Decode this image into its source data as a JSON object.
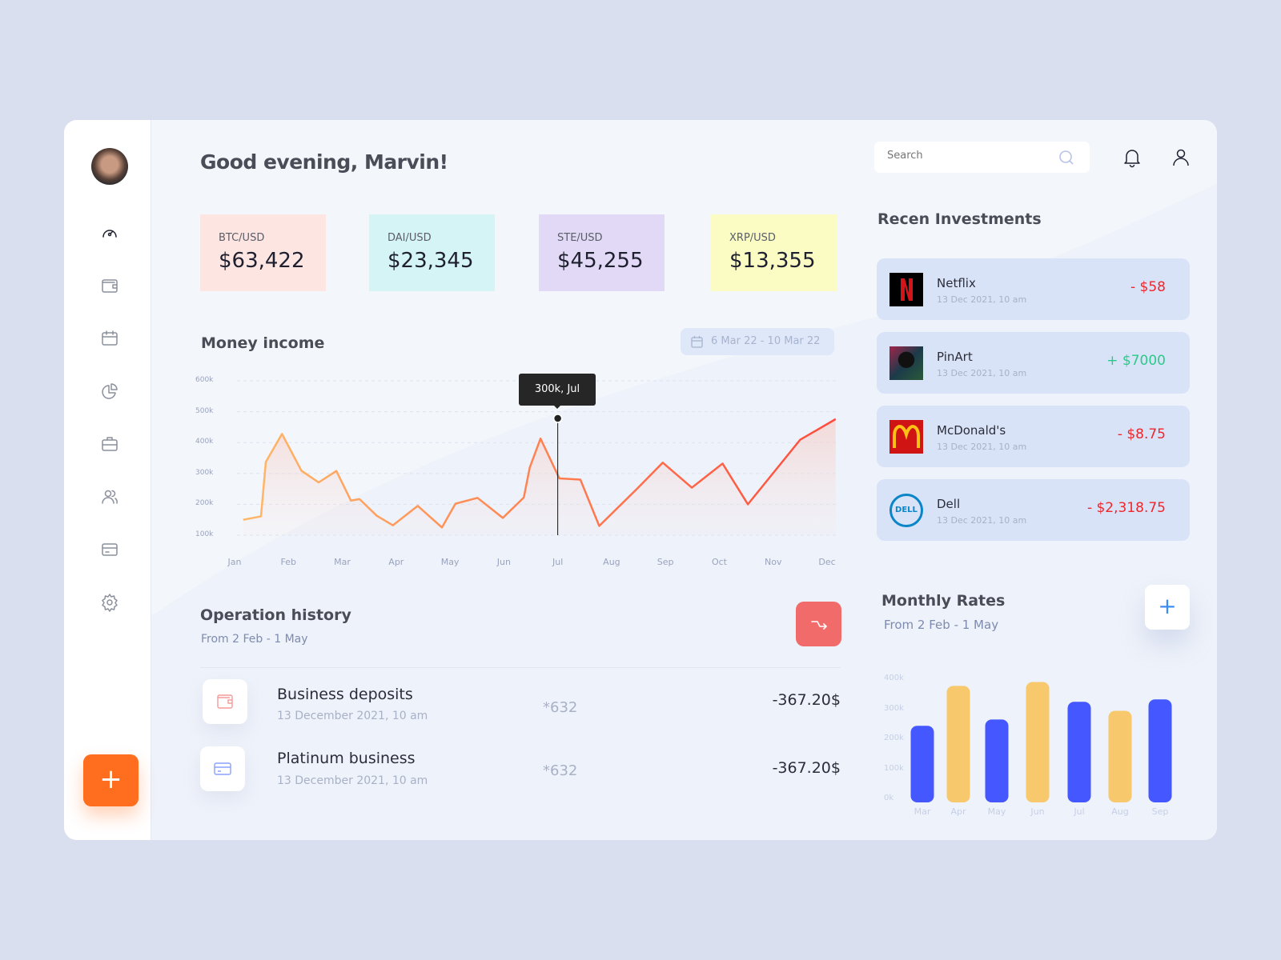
{
  "user": {
    "greeting": "Good evening, Marvin!"
  },
  "sidebar": {
    "items": [
      {
        "icon": "dashboard-gauge-icon"
      },
      {
        "icon": "wallet-icon"
      },
      {
        "icon": "calendar-icon"
      },
      {
        "icon": "pie-chart-icon"
      },
      {
        "icon": "briefcase-icon"
      },
      {
        "icon": "users-icon"
      },
      {
        "icon": "credit-card-icon"
      },
      {
        "icon": "settings-gear-icon"
      }
    ],
    "fab_label": "+"
  },
  "search": {
    "placeholder": "Search"
  },
  "tickers": [
    {
      "label": "BTC/USD",
      "value": "$63,422",
      "color": "#fde6e1"
    },
    {
      "label": "DAI/USD",
      "value": "$23,345",
      "color": "#d4f4f6"
    },
    {
      "label": "STE/USD",
      "value": "$45,255",
      "color": "#e2d9f6"
    },
    {
      "label": "XRP/USD",
      "value": "$13,355",
      "color": "#fafcc4"
    }
  ],
  "income": {
    "title": "Money income",
    "date_range": "6 Mar 22 - 10 Mar 22",
    "tooltip": "300k, Jul"
  },
  "chart_data": [
    {
      "type": "line",
      "title": "Money income",
      "x_tick_labels": [
        "Jan",
        "Feb",
        "Mar",
        "Apr",
        "May",
        "Jun",
        "Jul",
        "Aug",
        "Sep",
        "Oct",
        "Nov",
        "Dec"
      ],
      "y_tick_labels": [
        "600k",
        "500k",
        "400k",
        "300k",
        "200k",
        "100k"
      ],
      "ylim": [
        100,
        600
      ],
      "grid": true,
      "x_month_index": [
        0.16,
        0.49,
        0.58,
        0.88,
        1.24,
        1.56,
        1.89,
        2.16,
        2.32,
        2.64,
        2.94,
        3.4,
        3.85,
        4.1,
        4.51,
        4.98,
        5.37,
        5.48,
        5.68,
        6.03,
        6.42,
        6.77,
        7.47,
        7.95,
        8.49,
        9.06,
        9.53,
        10.5,
        11.16
      ],
      "y_k": [
        150,
        161,
        337,
        428,
        309,
        271,
        308,
        212,
        217,
        163,
        132,
        195,
        125,
        202,
        221,
        156,
        222,
        319,
        413,
        284,
        280,
        130,
        250,
        335,
        254,
        332,
        200,
        409,
        476
      ],
      "highlight": {
        "x": "Jul",
        "label": "300k, Jul"
      },
      "colors": {
        "start": "#ffb867",
        "end": "#ff4a3d"
      }
    },
    {
      "type": "bar",
      "title": "Monthly Rates",
      "categories": [
        "Mar",
        "Apr",
        "May",
        "Jun",
        "Jul",
        "Aug",
        "Sep"
      ],
      "values_k": [
        242,
        375,
        263,
        388,
        322,
        292,
        330
      ],
      "y_tick_labels": [
        "400k",
        "300k",
        "200k",
        "100k",
        "0k"
      ],
      "ylim": [
        0,
        400
      ],
      "colors": [
        "#4557ff",
        "#f8c96c",
        "#4557ff",
        "#f8c96c",
        "#4557ff",
        "#f8c96c",
        "#4557ff"
      ]
    }
  ],
  "investments": {
    "title": "Recen Investments",
    "items": [
      {
        "name": "Netflix",
        "date": "13 Dec 2021, 10 am",
        "amount": "- $58",
        "positive": false
      },
      {
        "name": "PinArt",
        "date": "13 Dec 2021, 10 am",
        "amount": "+ $7000",
        "positive": true
      },
      {
        "name": "McDonald's",
        "date": "13 Dec 2021, 10 am",
        "amount": "- $8.75",
        "positive": false
      },
      {
        "name": "Dell",
        "date": "13 Dec 2021, 10 am",
        "amount": "- $2,318.75",
        "positive": false,
        "logo_text": "DELL"
      }
    ]
  },
  "operations": {
    "title": "Operation history",
    "subtitle": "From 2 Feb - 1 May",
    "rows": [
      {
        "name": "Business deposits",
        "date": "13 December 2021, 10 am",
        "card": "*632",
        "amount": "-367.20$",
        "icon": "wallet-icon"
      },
      {
        "name": "Platinum business",
        "date": "13 December 2021, 10 am",
        "card": "*632",
        "amount": "-367.20$",
        "icon": "credit-card-icon"
      }
    ]
  },
  "rates": {
    "title": "Monthly Rates",
    "subtitle": "From 2 Feb - 1 May",
    "add_label": "+"
  },
  "colors": {
    "accent_orange": "#ff6d1f",
    "negative": "#f0262b",
    "positive": "#2cc98a",
    "export_button": "#f26b6b"
  }
}
